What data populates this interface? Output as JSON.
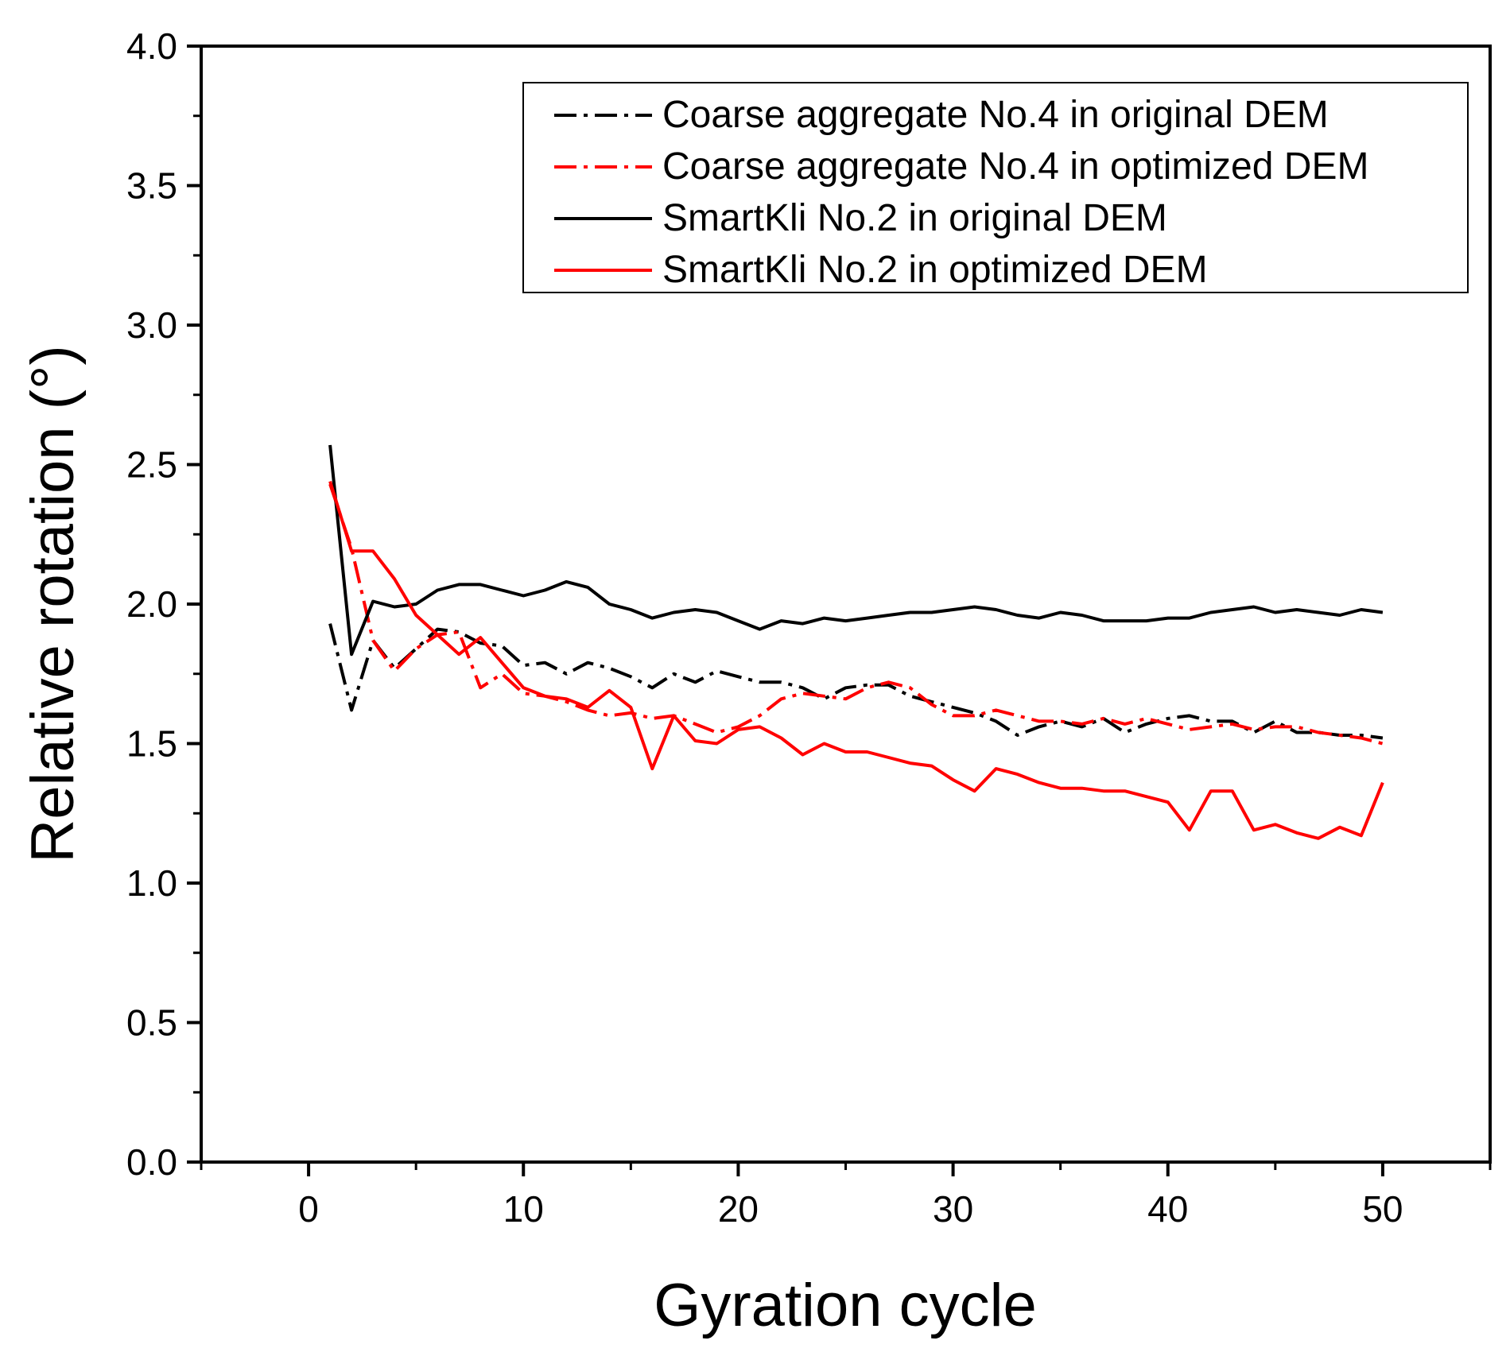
{
  "chart_data": {
    "type": "line",
    "title": "",
    "xlabel": "Gyration cycle",
    "ylabel": "Relative rotation (°)",
    "xlim": [
      -5,
      55
    ],
    "ylim": [
      0,
      4
    ],
    "x_ticks": [
      0,
      10,
      20,
      30,
      40,
      50
    ],
    "y_ticks": [
      0.0,
      0.5,
      1.0,
      1.5,
      2.0,
      2.5,
      3.0,
      3.5,
      4.0
    ],
    "x_tick_labels": [
      "0",
      "10",
      "20",
      "30",
      "40",
      "50"
    ],
    "y_tick_labels": [
      "0.0",
      "0.5",
      "1.0",
      "1.5",
      "2.0",
      "2.5",
      "3.0",
      "3.5",
      "4.0"
    ],
    "grid": false,
    "legend_position": "top-right",
    "x": [
      1,
      2,
      3,
      4,
      5,
      6,
      7,
      8,
      9,
      10,
      11,
      12,
      13,
      14,
      15,
      16,
      17,
      18,
      19,
      20,
      21,
      22,
      23,
      24,
      25,
      26,
      27,
      28,
      29,
      30,
      31,
      32,
      33,
      34,
      35,
      36,
      37,
      38,
      39,
      40,
      41,
      42,
      43,
      44,
      45,
      46,
      47,
      48,
      49,
      50
    ],
    "series": [
      {
        "name": "Coarse aggregate No.4 in original DEM",
        "color": "#000000",
        "style": "dash-dot",
        "values": [
          1.93,
          1.62,
          1.87,
          1.77,
          1.84,
          1.91,
          1.9,
          1.86,
          1.85,
          1.78,
          1.79,
          1.75,
          1.79,
          1.77,
          1.74,
          1.7,
          1.75,
          1.72,
          1.76,
          1.74,
          1.72,
          1.72,
          1.7,
          1.66,
          1.7,
          1.71,
          1.71,
          1.67,
          1.65,
          1.63,
          1.61,
          1.58,
          1.53,
          1.56,
          1.58,
          1.56,
          1.59,
          1.54,
          1.57,
          1.59,
          1.6,
          1.58,
          1.58,
          1.54,
          1.58,
          1.54,
          1.54,
          1.53,
          1.53,
          1.52
        ]
      },
      {
        "name": "Coarse aggregate No.4 in optimized DEM",
        "color": "#ff0000",
        "style": "dash-dot",
        "values": [
          2.43,
          2.2,
          1.87,
          1.76,
          1.84,
          1.89,
          1.9,
          1.7,
          1.75,
          1.68,
          1.67,
          1.65,
          1.62,
          1.6,
          1.61,
          1.59,
          1.6,
          1.57,
          1.54,
          1.56,
          1.6,
          1.66,
          1.68,
          1.67,
          1.66,
          1.7,
          1.72,
          1.7,
          1.64,
          1.6,
          1.6,
          1.62,
          1.6,
          1.58,
          1.58,
          1.57,
          1.59,
          1.57,
          1.59,
          1.57,
          1.55,
          1.56,
          1.57,
          1.55,
          1.56,
          1.56,
          1.54,
          1.53,
          1.52,
          1.5
        ]
      },
      {
        "name": "SmartKli No.2 in original DEM",
        "color": "#000000",
        "style": "solid",
        "values": [
          2.57,
          1.82,
          2.01,
          1.99,
          2.0,
          2.05,
          2.07,
          2.07,
          2.05,
          2.03,
          2.05,
          2.08,
          2.06,
          2.0,
          1.98,
          1.95,
          1.97,
          1.98,
          1.97,
          1.94,
          1.91,
          1.94,
          1.93,
          1.95,
          1.94,
          1.95,
          1.96,
          1.97,
          1.97,
          1.98,
          1.99,
          1.98,
          1.96,
          1.95,
          1.97,
          1.96,
          1.94,
          1.94,
          1.94,
          1.95,
          1.95,
          1.97,
          1.98,
          1.99,
          1.97,
          1.98,
          1.97,
          1.96,
          1.98,
          1.97
        ]
      },
      {
        "name": "SmartKli No.2 in optimized DEM",
        "color": "#ff0000",
        "style": "solid",
        "values": [
          2.44,
          2.19,
          2.19,
          2.09,
          1.96,
          1.89,
          1.82,
          1.88,
          1.79,
          1.7,
          1.67,
          1.66,
          1.63,
          1.69,
          1.63,
          1.41,
          1.6,
          1.51,
          1.5,
          1.55,
          1.56,
          1.52,
          1.46,
          1.5,
          1.47,
          1.47,
          1.45,
          1.43,
          1.42,
          1.37,
          1.33,
          1.41,
          1.39,
          1.36,
          1.34,
          1.34,
          1.33,
          1.33,
          1.31,
          1.29,
          1.19,
          1.33,
          1.33,
          1.19,
          1.21,
          1.18,
          1.16,
          1.2,
          1.17,
          1.36
        ]
      }
    ]
  }
}
